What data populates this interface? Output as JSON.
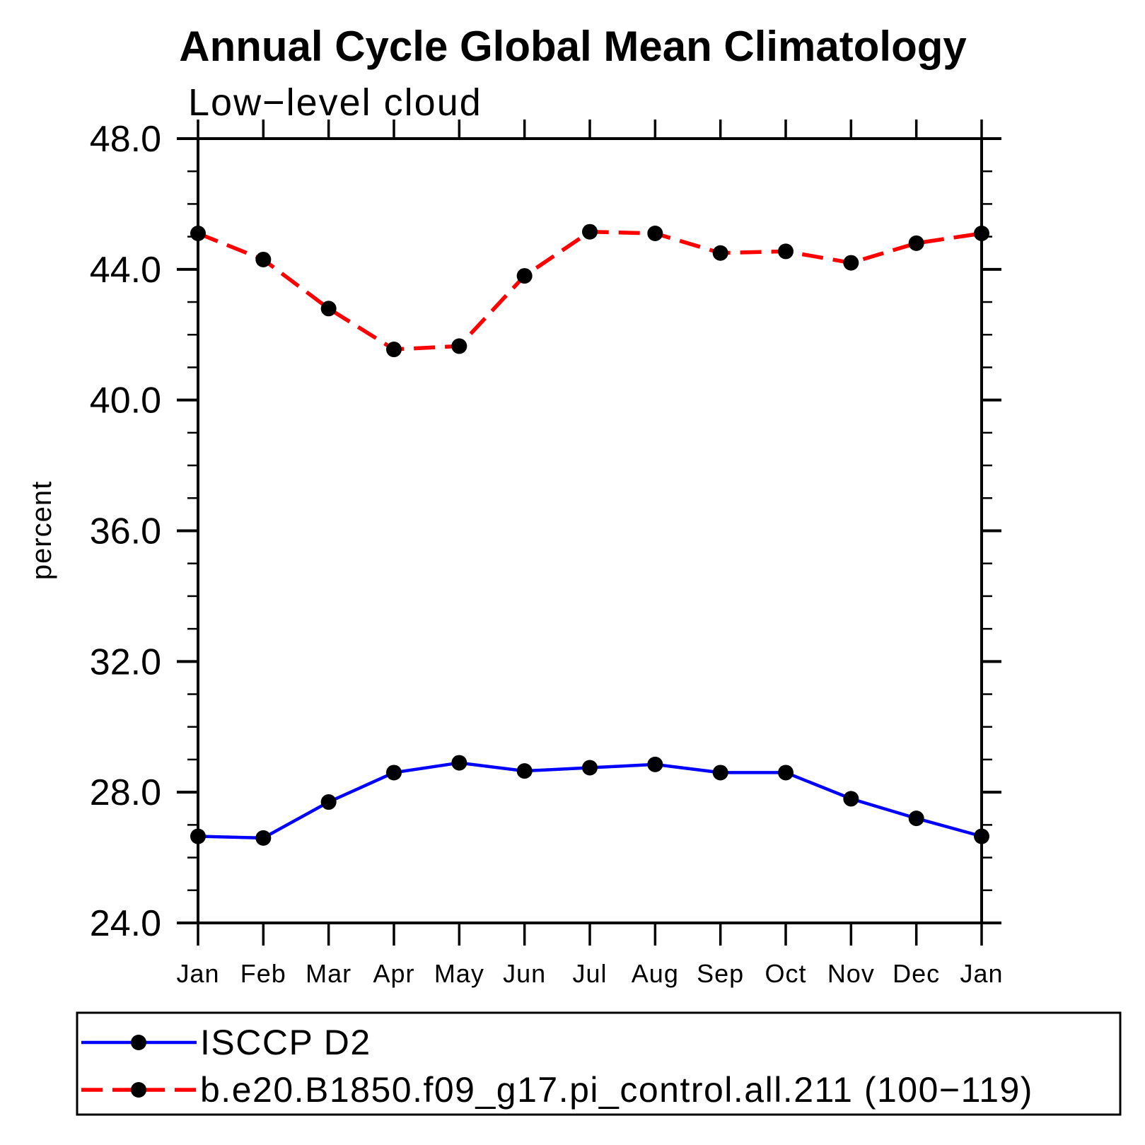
{
  "title": "Annual Cycle Global Mean Climatology",
  "subtitle": "Low−level cloud",
  "chart_data": {
    "type": "line",
    "title": "Annual Cycle Global Mean Climatology",
    "subtitle": "Low−level cloud",
    "xlabel": "",
    "ylabel": "percent",
    "x": [
      "Jan",
      "Feb",
      "Mar",
      "Apr",
      "May",
      "Jun",
      "Jul",
      "Aug",
      "Sep",
      "Oct",
      "Nov",
      "Dec",
      "Jan"
    ],
    "ylim": [
      24.0,
      48.0
    ],
    "ytick_major_interval": 4.0,
    "ytick_minor_interval": 1.0,
    "ytick_labels": [
      "24.0",
      "28.0",
      "32.0",
      "36.0",
      "40.0",
      "44.0",
      "48.0"
    ],
    "grid": false,
    "legend_position": "bottom-left-box",
    "series": [
      {
        "name": "ISCCP D2",
        "color": "#0000ff",
        "line_style": "solid",
        "marker": "filled-circle",
        "marker_color": "#000000",
        "values": [
          26.65,
          26.6,
          27.7,
          28.6,
          28.9,
          28.65,
          28.75,
          28.85,
          28.6,
          28.6,
          27.8,
          27.2,
          26.65
        ]
      },
      {
        "name": "b.e20.B1850.f09_g17.pi_control.all.211 (100−119)",
        "color": "#ff0000",
        "line_style": "dashed",
        "marker": "filled-circle",
        "marker_color": "#000000",
        "values": [
          45.1,
          44.3,
          42.8,
          41.55,
          41.65,
          43.8,
          45.15,
          45.1,
          44.5,
          44.55,
          44.2,
          44.8,
          45.1
        ]
      }
    ]
  },
  "axis_color": "#000000",
  "background_color": "#ffffff"
}
